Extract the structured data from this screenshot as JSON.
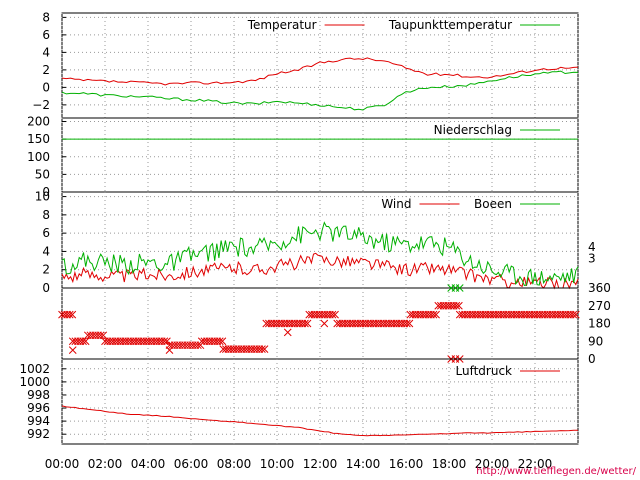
{
  "credit": "http://www.tiefflegen.de/wetter/",
  "colors": {
    "red": "#e00000",
    "green": "#00b000",
    "grid": "#999999",
    "credit": "#d8004a"
  },
  "x_ticks": [
    "00:00",
    "02:00",
    "04:00",
    "06:00",
    "08:00",
    "10:00",
    "12:00",
    "14:00",
    "16:00",
    "18:00",
    "20:00",
    "22:00"
  ],
  "chart_data": [
    {
      "type": "line",
      "panel": "temperature",
      "x": [
        0,
        1,
        2,
        3,
        4,
        5,
        6,
        7,
        8,
        9,
        10,
        11,
        12,
        13,
        14,
        15,
        16,
        17,
        18,
        19,
        20,
        21,
        22,
        23,
        24
      ],
      "ylim": [
        -3.5,
        8.5
      ],
      "yticks": [
        8,
        6,
        4,
        2,
        0,
        -2
      ],
      "ytick_labels": [
        "8",
        "6",
        "4",
        "2",
        "0",
        "−2"
      ],
      "grid": true,
      "legend_position": "top-right",
      "series": [
        {
          "name": "Temperatur",
          "color": "#e00000",
          "values": [
            1.0,
            0.8,
            0.7,
            0.6,
            0.5,
            0.4,
            0.5,
            0.5,
            0.6,
            0.8,
            1.6,
            2.0,
            2.8,
            3.2,
            3.3,
            3.0,
            2.2,
            1.5,
            1.5,
            1.2,
            1.2,
            1.6,
            2.0,
            2.2,
            2.2
          ]
        },
        {
          "name": "Taupunkttemperatur",
          "color": "#00b000",
          "values": [
            -0.6,
            -0.7,
            -0.9,
            -1.0,
            -1.1,
            -1.3,
            -1.4,
            -1.6,
            -1.8,
            -1.9,
            -1.6,
            -1.8,
            -2.0,
            -2.3,
            -2.5,
            -2.0,
            -0.5,
            0.0,
            0.1,
            0.3,
            0.8,
            1.2,
            1.5,
            1.7,
            1.8
          ]
        }
      ]
    },
    {
      "type": "line",
      "panel": "precipitation",
      "x": [
        0,
        24
      ],
      "ylim": [
        0,
        210
      ],
      "yticks": [
        200,
        150,
        100,
        50,
        0
      ],
      "ytick_labels": [
        "200",
        "150",
        "100",
        "50",
        "0"
      ],
      "grid": true,
      "legend_position": "top-right",
      "series": [
        {
          "name": "Niederschlag",
          "color": "#00b000",
          "values": [
            150,
            150
          ]
        }
      ]
    },
    {
      "type": "line",
      "panel": "wind",
      "x": [
        0,
        1,
        2,
        3,
        4,
        5,
        6,
        7,
        8,
        9,
        10,
        11,
        12,
        13,
        14,
        15,
        16,
        17,
        18,
        19,
        20,
        21,
        22,
        23,
        24
      ],
      "ylim": [
        0,
        10.5
      ],
      "yticks": [
        10,
        8,
        6,
        4,
        2,
        0
      ],
      "ytick_labels": [
        "10",
        "8",
        "6",
        "4",
        "2",
        "0"
      ],
      "right_tick_labels": [
        {
          "value": 4.5,
          "label": "4"
        },
        {
          "value": 3.2,
          "label": "3"
        }
      ],
      "grid": true,
      "legend_position": "top-right",
      "series": [
        {
          "name": "Wind",
          "color": "#e00000",
          "values": [
            1.2,
            1.5,
            1.4,
            1.3,
            1.5,
            1.4,
            1.8,
            2.0,
            2.2,
            2.0,
            2.4,
            2.8,
            3.2,
            3.0,
            2.8,
            2.4,
            2.0,
            2.2,
            2.0,
            1.4,
            0.9,
            0.6,
            0.5,
            0.4,
            0.5
          ]
        },
        {
          "name": "Boeen",
          "color": "#00b000",
          "values": [
            2.5,
            3.0,
            2.8,
            2.6,
            2.8,
            2.6,
            3.5,
            4.0,
            4.5,
            4.2,
            5.0,
            5.8,
            6.2,
            6.0,
            5.5,
            5.0,
            4.8,
            5.0,
            4.5,
            3.0,
            2.0,
            1.5,
            1.2,
            1.2,
            1.5
          ]
        }
      ]
    },
    {
      "type": "scatter",
      "panel": "wind-direction",
      "ylim": [
        0,
        360
      ],
      "right_tick_labels": [
        {
          "value": 360,
          "label": "360"
        },
        {
          "value": 270,
          "label": "270"
        },
        {
          "value": 180,
          "label": "180"
        },
        {
          "value": 90,
          "label": "90"
        },
        {
          "value": 0,
          "label": "0"
        }
      ],
      "marker": "x",
      "color": "#e00000",
      "segments": [
        {
          "x0": 0.0,
          "x1": 0.5,
          "value": 225
        },
        {
          "x0": 0.5,
          "x1": 1.2,
          "value": 90
        },
        {
          "x0": 1.2,
          "x1": 2.0,
          "value": 120
        },
        {
          "x0": 2.0,
          "x1": 5.0,
          "value": 90
        },
        {
          "x0": 5.0,
          "x1": 6.5,
          "value": 70
        },
        {
          "x0": 6.5,
          "x1": 7.5,
          "value": 90
        },
        {
          "x0": 7.5,
          "x1": 9.5,
          "value": 50
        },
        {
          "x0": 9.5,
          "x1": 11.5,
          "value": 180
        },
        {
          "x0": 11.5,
          "x1": 12.8,
          "value": 225
        },
        {
          "x0": 12.8,
          "x1": 16.2,
          "value": 180
        },
        {
          "x0": 16.2,
          "x1": 17.5,
          "value": 225
        },
        {
          "x0": 17.5,
          "x1": 18.5,
          "value": 270
        },
        {
          "x0": 18.5,
          "x1": 24.0,
          "value": 225
        }
      ],
      "extra_points": [
        {
          "x": 0.5,
          "value": 45,
          "color": "#e00000"
        },
        {
          "x": 5.0,
          "value": 45,
          "color": "#e00000"
        },
        {
          "x": 10.5,
          "value": 135,
          "color": "#e00000"
        },
        {
          "x": 12.2,
          "value": 180,
          "color": "#e00000"
        },
        {
          "x": 18.1,
          "value": 0,
          "color": "#e00000"
        },
        {
          "x": 18.3,
          "value": 0,
          "color": "#e00000"
        },
        {
          "x": 18.5,
          "value": 0,
          "color": "#e00000"
        },
        {
          "x": 18.1,
          "value": 360,
          "color": "#00b000"
        },
        {
          "x": 18.3,
          "value": 360,
          "color": "#00b000"
        },
        {
          "x": 18.5,
          "value": 360,
          "color": "#00b000"
        }
      ]
    },
    {
      "type": "line",
      "panel": "pressure",
      "x": [
        0,
        1,
        2,
        3,
        4,
        5,
        6,
        7,
        8,
        9,
        10,
        11,
        12,
        13,
        14,
        15,
        16,
        17,
        18,
        19,
        20,
        21,
        22,
        23,
        24
      ],
      "ylim": [
        990.5,
        1003.5
      ],
      "yticks": [
        1002,
        1000,
        998,
        996,
        994,
        992
      ],
      "ytick_labels": [
        "1002",
        "1000",
        "998",
        "996",
        "994",
        "992"
      ],
      "grid": true,
      "legend_position": "top-right",
      "series": [
        {
          "name": "Luftdruck",
          "color": "#e00000",
          "values": [
            996.3,
            995.9,
            995.5,
            995.1,
            994.9,
            994.7,
            994.4,
            994.1,
            993.9,
            993.6,
            993.3,
            993.0,
            992.5,
            992.0,
            991.8,
            991.8,
            991.9,
            992.0,
            992.1,
            992.2,
            992.2,
            992.3,
            992.4,
            992.5,
            992.6
          ]
        }
      ]
    }
  ]
}
